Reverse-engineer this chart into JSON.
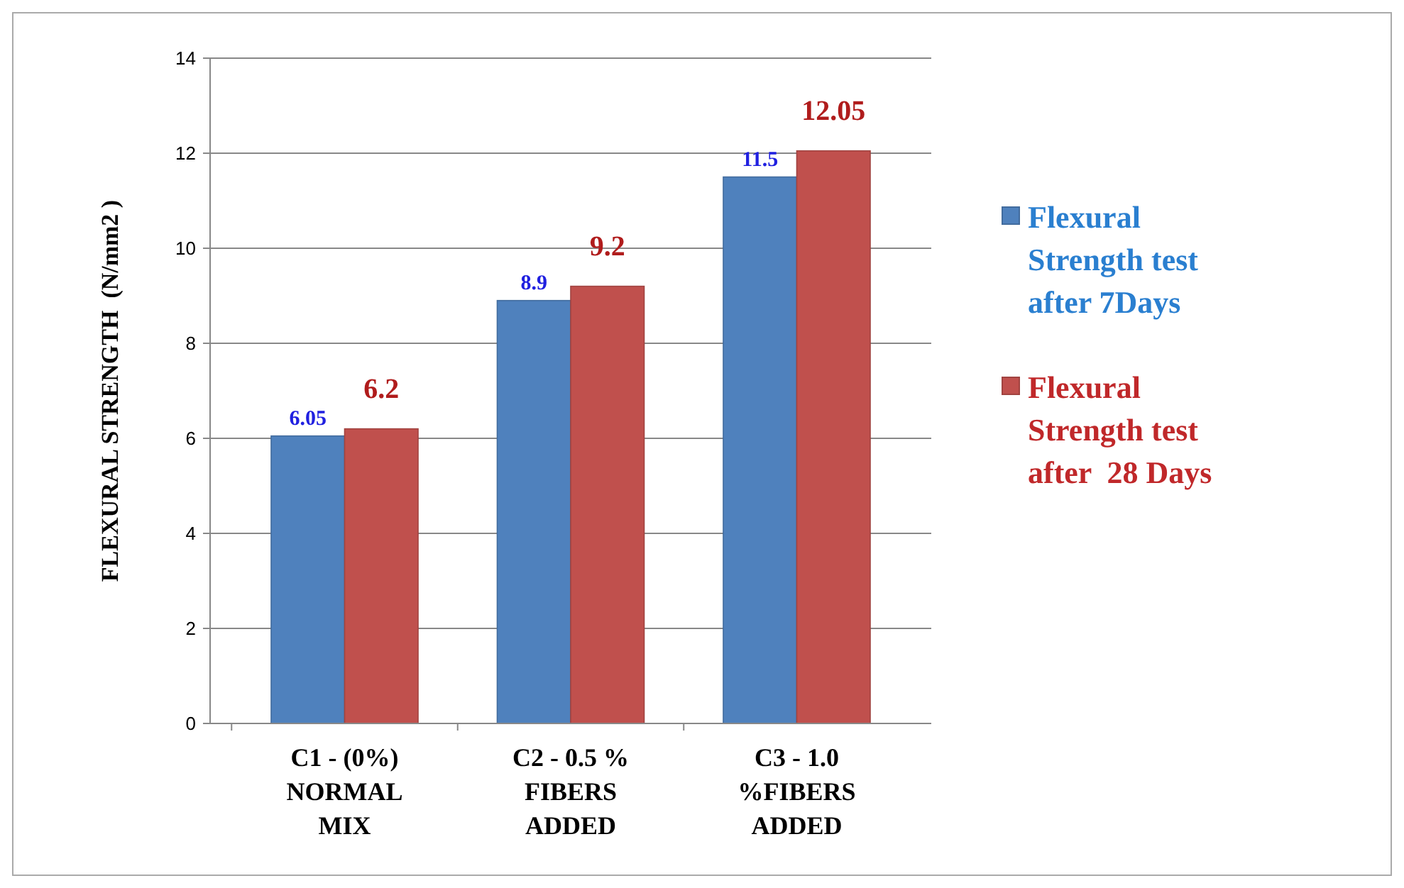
{
  "chart_data": {
    "type": "bar",
    "ylabel": "FLEXURAL STRENGTH  (N/mm2 )",
    "categories": [
      "C1 - (0%)\nNORMAL\nMIX",
      "C2 - 0.5 %\nFIBERS\nADDED",
      "C3 - 1.0\n%FIBERS\nADDED"
    ],
    "series": [
      {
        "name": "Flexural Strength test after 7Days",
        "color": "#4f81bd",
        "values": [
          6.05,
          8.9,
          11.5
        ]
      },
      {
        "name": "Flexural Strength test after  28 Days",
        "color": "#c0504d",
        "values": [
          6.2,
          9.2,
          12.05
        ]
      }
    ],
    "ylim": [
      0,
      14
    ],
    "yticks": [
      0,
      2,
      4,
      6,
      8,
      10,
      12,
      14
    ],
    "grid": "y",
    "legend": "right",
    "data_labels": true
  }
}
